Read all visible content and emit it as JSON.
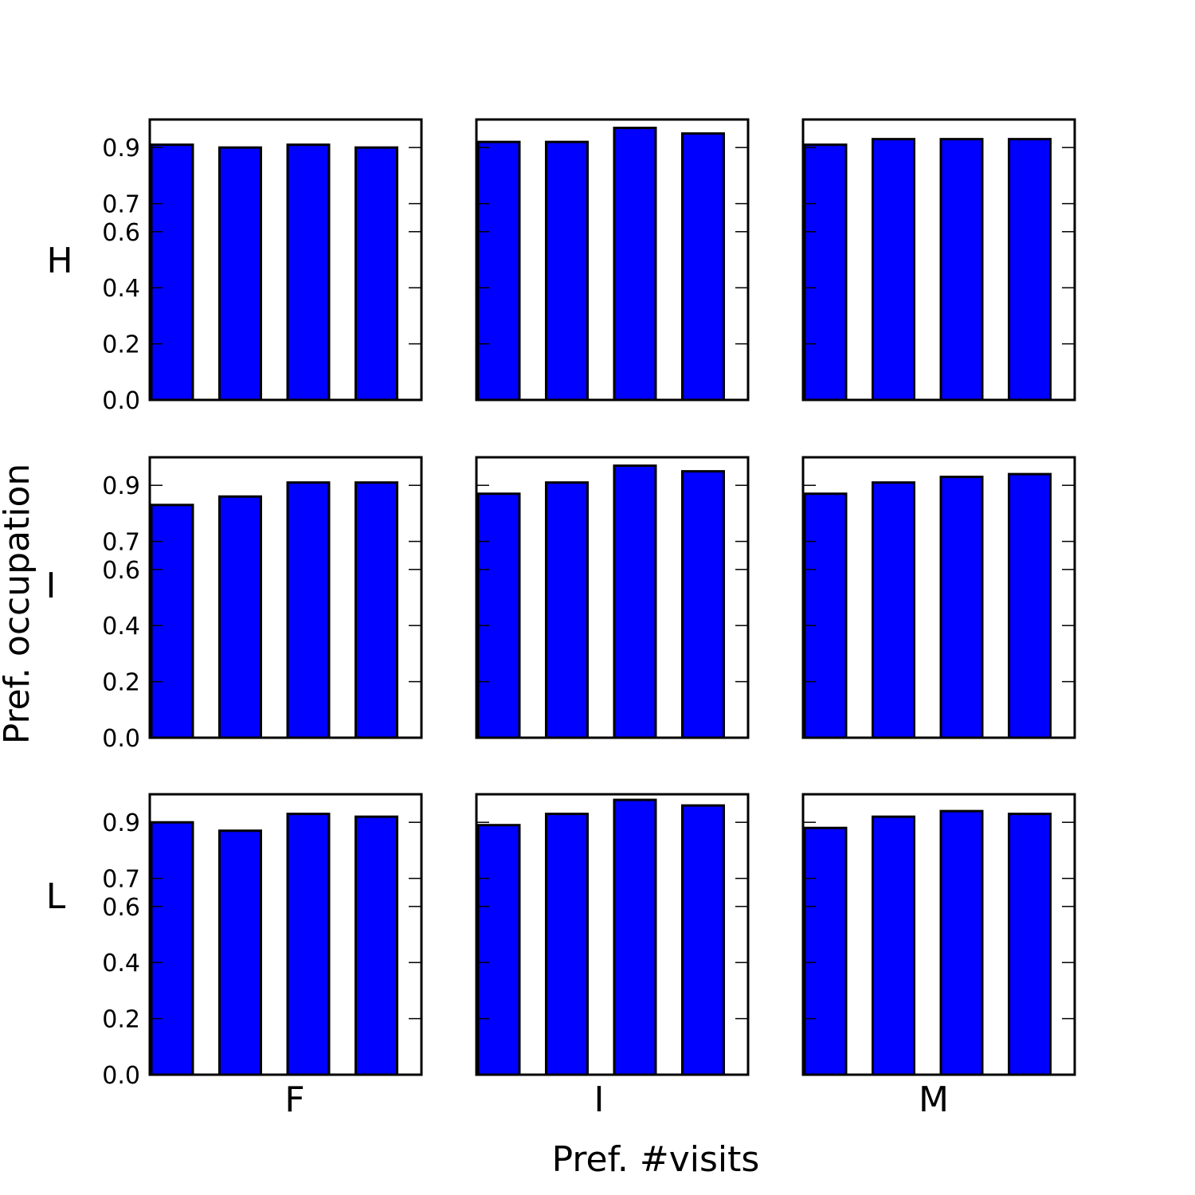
{
  "figure": {
    "xlabel": "Pref. #visits",
    "ylabel": "Pref. occupation",
    "row_labels": [
      "H",
      "I",
      "L"
    ],
    "col_labels": [
      "F",
      "I",
      "M"
    ],
    "bar_color": "#0000ff",
    "edge_color": "#000000"
  },
  "chart_data": [
    {
      "type": "bar",
      "row": "H",
      "col": "F",
      "values": [
        0.91,
        0.9,
        0.91,
        0.9
      ],
      "yticks": [
        "0.0",
        "0.2",
        "0.4",
        "0.6",
        "0.7",
        "0.9"
      ],
      "ylim": [
        0,
        1.0
      ]
    },
    {
      "type": "bar",
      "row": "H",
      "col": "I",
      "values": [
        0.92,
        0.92,
        0.97,
        0.95
      ],
      "yticks": [
        "0.0",
        "0.2",
        "0.4",
        "0.6",
        "0.7",
        "0.9"
      ],
      "ylim": [
        0,
        1.0
      ]
    },
    {
      "type": "bar",
      "row": "H",
      "col": "M",
      "values": [
        0.91,
        0.93,
        0.93,
        0.93
      ],
      "yticks": [
        "0.0",
        "0.2",
        "0.4",
        "0.6",
        "0.7",
        "0.9"
      ],
      "ylim": [
        0,
        1.0
      ]
    },
    {
      "type": "bar",
      "row": "I",
      "col": "F",
      "values": [
        0.83,
        0.86,
        0.91,
        0.91
      ],
      "yticks": [
        "0.0",
        "0.2",
        "0.4",
        "0.6",
        "0.7",
        "0.9"
      ],
      "ylim": [
        0,
        1.0
      ]
    },
    {
      "type": "bar",
      "row": "I",
      "col": "I",
      "values": [
        0.87,
        0.91,
        0.97,
        0.95
      ],
      "yticks": [
        "0.0",
        "0.2",
        "0.4",
        "0.6",
        "0.7",
        "0.9"
      ],
      "ylim": [
        0,
        1.0
      ]
    },
    {
      "type": "bar",
      "row": "I",
      "col": "M",
      "values": [
        0.87,
        0.91,
        0.93,
        0.94
      ],
      "yticks": [
        "0.0",
        "0.2",
        "0.4",
        "0.6",
        "0.7",
        "0.9"
      ],
      "ylim": [
        0,
        1.0
      ]
    },
    {
      "type": "bar",
      "row": "L",
      "col": "F",
      "values": [
        0.9,
        0.87,
        0.93,
        0.92
      ],
      "yticks": [
        "0.0",
        "0.2",
        "0.4",
        "0.6",
        "0.7",
        "0.9"
      ],
      "ylim": [
        0,
        1.0
      ]
    },
    {
      "type": "bar",
      "row": "L",
      "col": "I",
      "values": [
        0.89,
        0.93,
        0.98,
        0.96
      ],
      "yticks": [
        "0.0",
        "0.2",
        "0.4",
        "0.6",
        "0.7",
        "0.9"
      ],
      "ylim": [
        0,
        1.0
      ]
    },
    {
      "type": "bar",
      "row": "L",
      "col": "M",
      "values": [
        0.88,
        0.92,
        0.94,
        0.93
      ],
      "yticks": [
        "0.0",
        "0.2",
        "0.4",
        "0.6",
        "0.7",
        "0.9"
      ],
      "ylim": [
        0,
        1.0
      ]
    }
  ]
}
